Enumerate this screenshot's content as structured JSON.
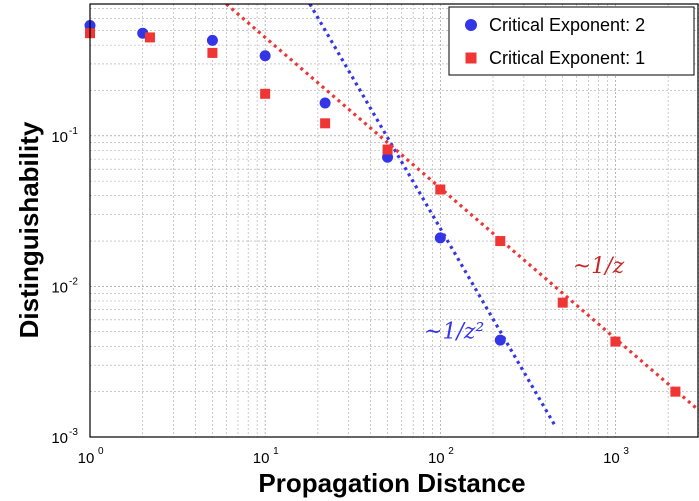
{
  "chart_data": {
    "type": "scatter",
    "xscale": "log",
    "yscale": "log",
    "xlim": [
      1,
      3000
    ],
    "ylim": [
      0.001,
      0.75
    ],
    "xlabel": "Propagation Distance",
    "ylabel": "Distinguishability",
    "grid": true,
    "legend_position": "top-right",
    "x_ticks": [
      {
        "base": "10",
        "exp": "0"
      },
      {
        "base": "10",
        "exp": "1"
      },
      {
        "base": "10",
        "exp": "2"
      },
      {
        "base": "10",
        "exp": "3"
      }
    ],
    "y_ticks": [
      {
        "base": "10",
        "exp": "-3"
      },
      {
        "base": "10",
        "exp": "-2"
      },
      {
        "base": "10",
        "exp": "-1"
      }
    ],
    "series": [
      {
        "name": "Critical Exponent: 2",
        "color": "#3535e8",
        "marker": "circle",
        "x": [
          1,
          2,
          5,
          10,
          22,
          50,
          100,
          220
        ],
        "y": [
          0.54,
          0.48,
          0.43,
          0.34,
          0.165,
          0.072,
          0.021,
          0.0044
        ]
      },
      {
        "name": "Critical Exponent: 1",
        "color": "#f03535",
        "marker": "square",
        "x": [
          1,
          2.2,
          5,
          10,
          22,
          50,
          100,
          220,
          500,
          1000,
          2200
        ],
        "y": [
          0.48,
          0.45,
          0.355,
          0.19,
          0.121,
          0.081,
          0.044,
          0.02,
          0.0078,
          0.0043,
          0.002
        ]
      }
    ],
    "fit_lines": [
      {
        "label": "~1/z²",
        "color": "#3535e8",
        "style": "dotted",
        "x": [
          18,
          450
        ],
        "y": [
          0.75,
          0.0012
        ]
      },
      {
        "label": "~1/z",
        "color": "#f03535",
        "style": "dotted",
        "x": [
          6,
          3000
        ],
        "y": [
          0.75,
          0.0015
        ]
      }
    ],
    "annotations": [
      {
        "series": "Critical Exponent: 2",
        "text": "~1/z²",
        "x": 120,
        "y": 0.0045,
        "color": "#3535e8"
      },
      {
        "series": "Critical Exponent: 1",
        "text": "~1/z",
        "x": 800,
        "y": 0.0123,
        "color": "#c82828"
      }
    ]
  }
}
